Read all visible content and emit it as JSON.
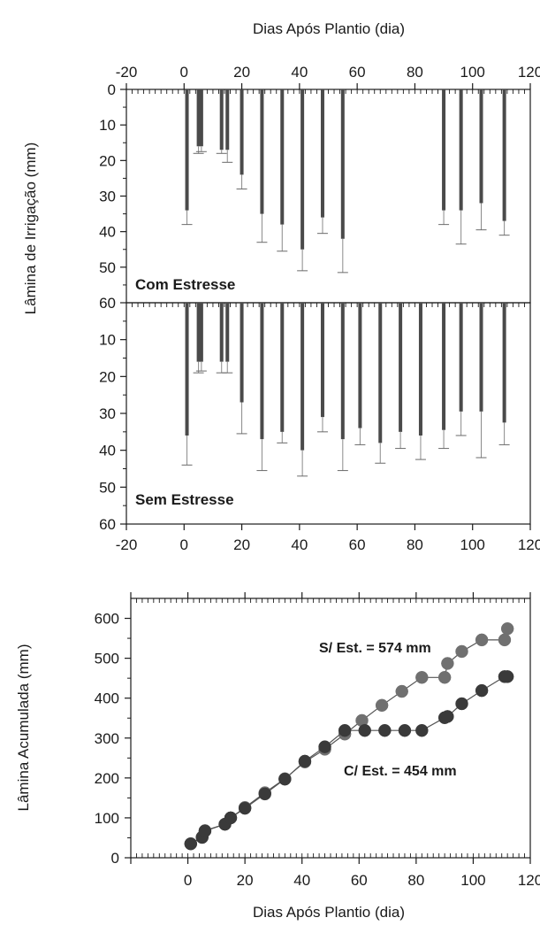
{
  "chart_data": [
    {
      "type": "bar",
      "panel": "Com Estresse",
      "label": "Com Estresse",
      "xlabel": "Dias Após Plantio (dia)",
      "ylabel": "Lâmina de Irrigação (mm)",
      "xlim": [
        -20,
        120
      ],
      "ylim": [
        0,
        60
      ],
      "y_inverted": true,
      "x_ticks": [
        -20,
        0,
        20,
        40,
        60,
        80,
        100,
        120
      ],
      "y_ticks": [
        0,
        10,
        20,
        30,
        40,
        50,
        60
      ],
      "x": [
        1,
        5,
        6,
        13,
        15,
        20,
        27,
        34,
        41,
        48,
        55,
        90,
        96,
        103,
        111
      ],
      "values": [
        34,
        16,
        16,
        17,
        17,
        24,
        35,
        38,
        45,
        36,
        42,
        34,
        34,
        32,
        37
      ],
      "error_upper": [
        4,
        2,
        1.5,
        1,
        3.5,
        4,
        8,
        7.5,
        6,
        4.5,
        9.5,
        4,
        9.5,
        7.5,
        4
      ]
    },
    {
      "type": "bar",
      "panel": "Sem Estresse",
      "label": "Sem Estresse",
      "xlabel": "",
      "ylabel": "",
      "xlim": [
        -20,
        120
      ],
      "ylim": [
        0,
        60
      ],
      "y_inverted": true,
      "x_ticks": [
        -20,
        0,
        20,
        40,
        60,
        80,
        100,
        120
      ],
      "y_ticks": [
        10,
        20,
        30,
        40,
        50,
        60
      ],
      "x": [
        1,
        5,
        6,
        13,
        15,
        20,
        27,
        34,
        41,
        48,
        55,
        61,
        68,
        75,
        82,
        90,
        96,
        103,
        111
      ],
      "values": [
        36,
        16,
        16,
        16,
        16,
        27,
        37,
        35,
        40,
        31,
        37,
        34,
        38,
        35,
        36,
        34.5,
        29.5,
        29.5,
        32.5
      ],
      "error_upper": [
        8,
        3,
        2.5,
        3,
        3,
        8.5,
        8.5,
        3,
        7,
        4,
        8.5,
        4.5,
        5.5,
        4.5,
        6.5,
        5,
        6.5,
        12.5,
        6
      ]
    },
    {
      "type": "scatter",
      "xlabel": "Dias Após Plantio (dia)",
      "ylabel": "Lâmina Acumulada (mm)",
      "xlim": [
        -20,
        120
      ],
      "ylim": [
        0,
        650
      ],
      "x_ticks": [
        0,
        20,
        40,
        60,
        80,
        100,
        120
      ],
      "y_ticks": [
        0,
        100,
        200,
        300,
        400,
        500,
        600
      ],
      "series": [
        {
          "color": "#707070",
          "x": [
            1,
            5,
            6,
            13,
            15,
            20,
            27,
            34,
            41,
            48,
            55,
            61,
            68,
            75,
            82,
            90,
            91,
            96,
            103,
            111,
            112
          ],
          "y": [
            35,
            52,
            68,
            84,
            100,
            126,
            163,
            198,
            240,
            272,
            310,
            344,
            382,
            417,
            452,
            452,
            487,
            517,
            546,
            546,
            574
          ]
        },
        {
          "color": "#3a3a3a",
          "x": [
            1,
            5,
            6,
            13,
            15,
            20,
            27,
            34,
            41,
            48,
            55,
            62,
            69,
            76,
            82,
            90,
            91,
            96,
            103,
            111,
            112
          ],
          "y": [
            35,
            51,
            67,
            84,
            100,
            124,
            160,
            197,
            242,
            278,
            319,
            319,
            319,
            319,
            319,
            351,
            354,
            386,
            419,
            454,
            454
          ]
        }
      ],
      "annotations": [
        "S/ Est. = 574 mm",
        "C/ Est. = 454 mm"
      ]
    }
  ]
}
